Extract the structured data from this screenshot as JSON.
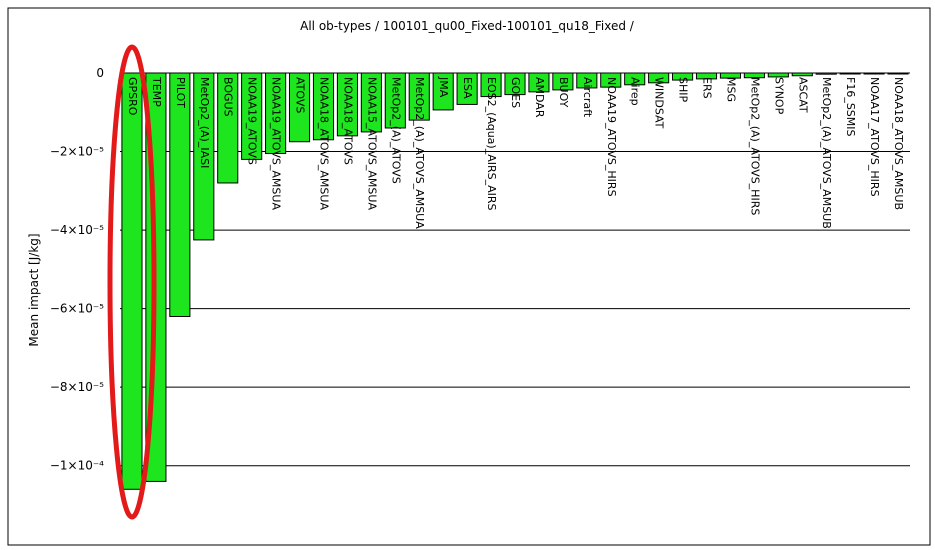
{
  "chart_data": {
    "type": "bar",
    "title": "All ob-types / 100101_qu00_Fixed-100101_qu18_Fixed /",
    "y_label": "Mean impact [J/kg]",
    "categories": [
      "GPSRO",
      "TEMP",
      "PILOT",
      "MetOp2_(A)_IASI",
      "BOGUS",
      "NOAA19_ATOVS",
      "NOAA19_ATOVS_AMSUA",
      "ATOVS",
      "NOAA18_ATOVS_AMSUA",
      "NOAA18_ATOVS",
      "NOAA15_ATOVS_AMSUA",
      "MetOp2_(A)_ATOVS",
      "MetOp2_(A)_ATOVS_AMSUA",
      "JMA",
      "ESA",
      "EOS2_(Aqua)_AIRS_AIRS",
      "GOES",
      "AMDAR",
      "BUOY",
      "Aircraft",
      "NOAA19_ATOVS_HIRS",
      "Airep",
      "WINDSAT",
      "SHIP",
      "ERS",
      "MSG",
      "MetOp2_(A)_ATOVS_HIRS",
      "SYNOP",
      "ASCAT",
      "MetOp2_(A)_ATOVS_AMSUB",
      "F16_SSMIS",
      "NOAA17_ATOVS_HIRS",
      "NOAA18_ATOVS_AMSUB"
    ],
    "values": [
      -0.000106,
      -0.000104,
      -6.2e-05,
      -4.25e-05,
      -2.8e-05,
      -2.2e-05,
      -2.05e-05,
      -1.75e-05,
      -1.7e-05,
      -1.6e-05,
      -1.5e-05,
      -1.4e-05,
      -1.2e-05,
      -9.4e-06,
      -8e-06,
      -6e-06,
      -5.5e-06,
      -4.8e-06,
      -4.3e-06,
      -3.8e-06,
      -3.6e-06,
      -3e-06,
      -2.5e-06,
      -1.8e-06,
      -1.5e-06,
      -1.3e-06,
      -1.2e-06,
      -1e-06,
      -7e-07,
      -3e-07,
      -1e-07,
      -5e-08,
      -3e-08
    ],
    "color": "#1ee61e",
    "ylim": [
      -0.00011,
      0
    ],
    "yticks": [
      {
        "value": -0.0001,
        "label": "−1×10⁻⁴"
      },
      {
        "value": -8e-05,
        "label": "−8×10⁻⁵"
      },
      {
        "value": -6e-05,
        "label": "−6×10⁻⁵"
      },
      {
        "value": -4e-05,
        "label": "−4×10⁻⁵"
      },
      {
        "value": -2e-05,
        "label": "−2×10⁻⁵"
      },
      0
    ],
    "grid": true
  }
}
